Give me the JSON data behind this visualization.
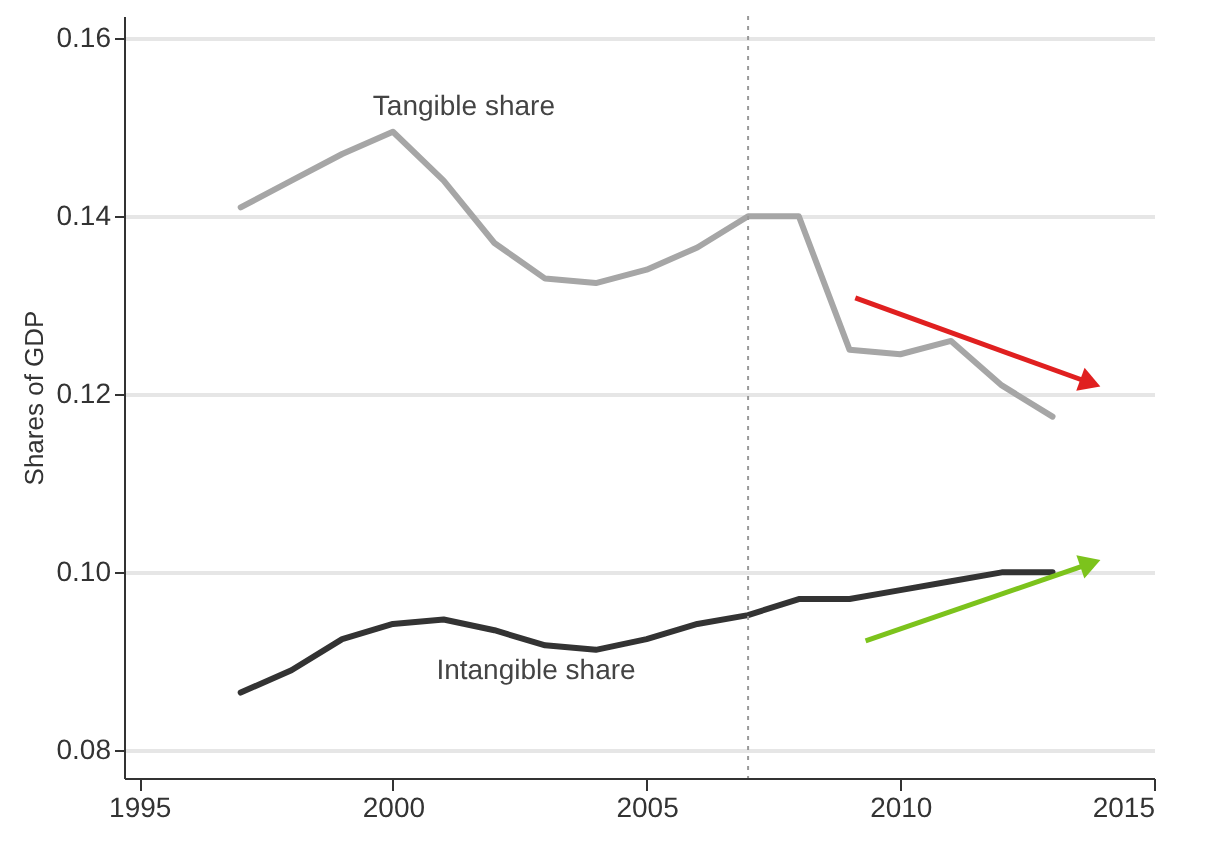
{
  "chart_data": {
    "type": "line",
    "ylabel": "Shares of GDP",
    "x": [
      1997,
      1998,
      1999,
      2000,
      2001,
      2002,
      2003,
      2004,
      2005,
      2006,
      2007,
      2008,
      2009,
      2010,
      2011,
      2012,
      2013
    ],
    "series": [
      {
        "name": "Tangible share",
        "color": "#a6a6a6",
        "values": [
          0.141,
          0.144,
          0.147,
          0.1495,
          0.144,
          0.137,
          0.133,
          0.1325,
          0.134,
          0.1365,
          0.14,
          0.14,
          0.125,
          0.1245,
          0.126,
          0.121,
          0.1175
        ]
      },
      {
        "name": "Intangible share",
        "color": "#333333",
        "values": [
          0.0865,
          0.089,
          0.0925,
          0.0942,
          0.0947,
          0.0935,
          0.0918,
          0.0913,
          0.0925,
          0.0942,
          0.0952,
          0.097,
          0.097,
          0.098,
          0.099,
          0.1,
          0.1
        ]
      }
    ],
    "xlim": [
      1994.7,
      2015
    ],
    "xticks": [
      1995,
      2000,
      2005,
      2010,
      2015
    ],
    "ylim": [
      0.0769,
      0.1625
    ],
    "yticks": [
      0.08,
      {
        "value": 0.1,
        "label": "0.10"
      },
      0.12,
      0.14,
      0.16
    ],
    "grid": "y",
    "marker": "none",
    "line_style": "solid",
    "ref_lines": [
      {
        "axis": "x",
        "value": 2007,
        "color": "#999999",
        "line_style": "dotted"
      }
    ]
  }
}
